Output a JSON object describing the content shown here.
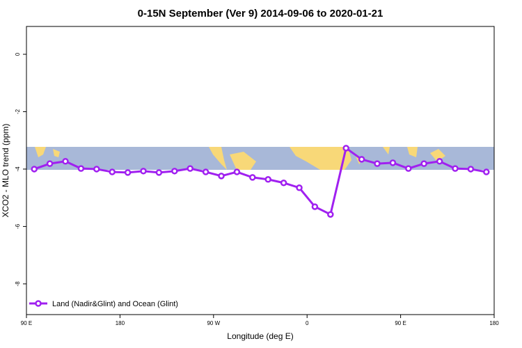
{
  "chart_data": {
    "type": "line",
    "title": "0-15N September (Ver 9)   2014-09-06 to 2020-01-21",
    "x_label": "Longitude (deg E)",
    "y_label": "XCO2 - MLO trend (ppm)",
    "x": [
      97.5,
      112.5,
      127.5,
      142.5,
      157.5,
      172.5,
      187.5,
      202.5,
      217.5,
      232.5,
      247.5,
      262.5,
      277.5,
      292.5,
      307.5,
      322.5,
      337.5,
      352.5,
      367.5,
      382.5,
      397.5,
      412.5,
      427.5,
      442.5,
      457.5,
      472.5,
      487.5,
      502.5,
      517.5,
      532.5
    ],
    "series": [
      {
        "name": "Land (Nadir&Glint) and Ocean (Glint)",
        "color": "#a020f0",
        "values": [
          -4.0,
          -3.81,
          -3.73,
          -3.98,
          -4.0,
          -4.1,
          -4.12,
          -4.07,
          -4.12,
          -4.07,
          -3.98,
          -4.1,
          -4.24,
          -4.1,
          -4.29,
          -4.36,
          -4.48,
          -4.65,
          -5.31,
          -5.58,
          -3.27,
          -3.66,
          -3.81,
          -3.78,
          -3.98,
          -3.81,
          -3.73,
          -3.98,
          -4.0,
          -4.1
        ]
      }
    ],
    "xlim": [
      90,
      540
    ],
    "xticks": [
      {
        "value": 90,
        "label": "90 E"
      },
      180,
      {
        "value": 270,
        "label": "90 W"
      },
      {
        "value": 360,
        "label": "0"
      },
      {
        "value": 450,
        "label": "90 E"
      },
      {
        "value": 540,
        "label": "180"
      }
    ],
    "ylim": [
      -9.07,
      0.97
    ],
    "yticks": [
      0,
      -2,
      -4,
      -6,
      -8
    ],
    "legend": "bottom-left"
  }
}
